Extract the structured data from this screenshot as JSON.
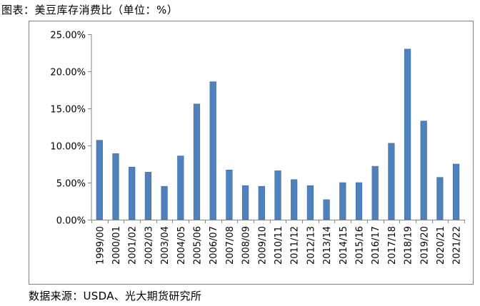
{
  "title": "图表：美豆库存消费比（单位：%）",
  "source": "数据来源：USDA、光大期货研究所",
  "colors": {
    "bar": "#4f81bd",
    "bar_edge": "#3a6aa6",
    "axis": "#868686"
  },
  "chart_data": {
    "type": "bar",
    "title": "",
    "xlabel": "",
    "ylabel": "",
    "ylim": [
      0,
      25
    ],
    "yticks": [
      0,
      5,
      10,
      15,
      20,
      25
    ],
    "ytick_labels": [
      "0.00%",
      "5.00%",
      "10.00%",
      "15.00%",
      "20.00%",
      "25.00%"
    ],
    "grid": false,
    "legend": "none",
    "categories": [
      "1999/00",
      "2000/01",
      "2001/02",
      "2002/03",
      "2003/04",
      "2004/05",
      "2005/06",
      "2006/07",
      "2007/08",
      "2008/09",
      "2009/10",
      "2010/11",
      "2011/12",
      "2012/13",
      "2013/14",
      "2014/15",
      "2015/16",
      "2016/17",
      "2017/18",
      "2018/19",
      "2019/20",
      "2020/21",
      "2021/22"
    ],
    "values": [
      10.7,
      8.9,
      7.1,
      6.4,
      4.5,
      8.6,
      15.6,
      18.6,
      6.7,
      4.6,
      4.5,
      6.6,
      5.4,
      4.6,
      2.7,
      5.0,
      5.0,
      7.2,
      10.3,
      23.0,
      13.3,
      5.7,
      7.5
    ]
  }
}
